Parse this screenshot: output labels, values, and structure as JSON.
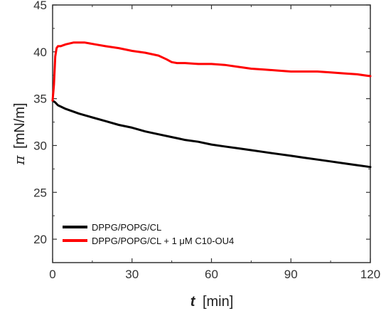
{
  "chart_data": {
    "type": "line",
    "title": "",
    "xlabel_var": "t",
    "xlabel_unit": "[min]",
    "ylabel_var": "π",
    "ylabel_unit": "[mN/m]",
    "xlim": [
      0,
      120
    ],
    "ylim": [
      17.5,
      45
    ],
    "x_ticks": [
      "0",
      "30",
      "60",
      "90",
      "120"
    ],
    "y_ticks": [
      "20",
      "25",
      "30",
      "35",
      "40",
      "45"
    ],
    "grid": false,
    "legend_position": "bottom-left",
    "series": [
      {
        "name": "DPPG/POPG/CL",
        "color": "#000000",
        "x": [
          0,
          1,
          2,
          5,
          10,
          15,
          20,
          25,
          30,
          35,
          40,
          45,
          50,
          55,
          60,
          65,
          70,
          75,
          80,
          85,
          90,
          95,
          100,
          105,
          110,
          115,
          120
        ],
        "y": [
          34.8,
          34.6,
          34.3,
          33.9,
          33.4,
          33.0,
          32.6,
          32.2,
          31.9,
          31.5,
          31.2,
          30.9,
          30.6,
          30.4,
          30.1,
          29.9,
          29.7,
          29.5,
          29.3,
          29.1,
          28.9,
          28.7,
          28.5,
          28.3,
          28.1,
          27.9,
          27.7
        ]
      },
      {
        "name": "DPPG/POPG/CL + 1 μM C10-OU4",
        "color": "#ff0000",
        "x": [
          0,
          0.5,
          1,
          1.5,
          2,
          3,
          5,
          8,
          12,
          16,
          20,
          25,
          30,
          35,
          40,
          43,
          45,
          47,
          50,
          55,
          60,
          65,
          70,
          75,
          80,
          85,
          90,
          95,
          100,
          105,
          110,
          115,
          120
        ],
        "y": [
          34.8,
          36.5,
          39.5,
          40.4,
          40.6,
          40.6,
          40.8,
          41.0,
          41.0,
          40.8,
          40.6,
          40.4,
          40.1,
          39.9,
          39.6,
          39.2,
          38.9,
          38.8,
          38.8,
          38.7,
          38.7,
          38.6,
          38.4,
          38.2,
          38.1,
          38.0,
          37.9,
          37.9,
          37.9,
          37.8,
          37.7,
          37.6,
          37.4
        ]
      }
    ]
  }
}
